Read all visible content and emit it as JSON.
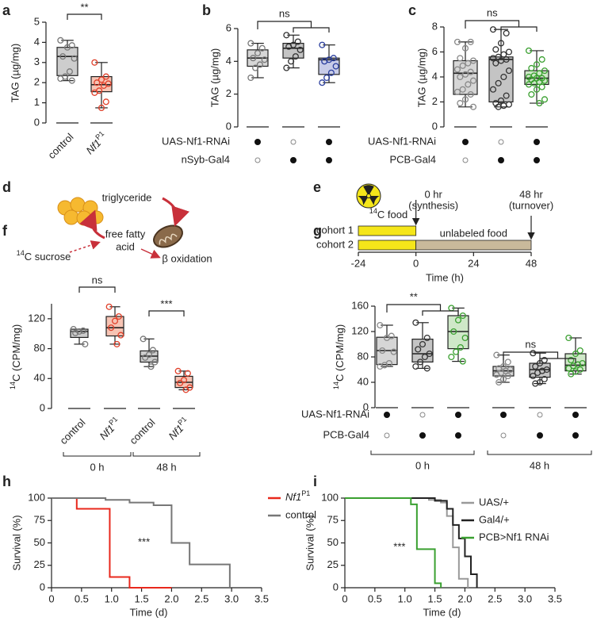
{
  "chart_data": [
    {
      "panel": "a",
      "letter": "a",
      "type": "box",
      "ylabel": "TAG (µg/mg)",
      "ylim": [
        0,
        5
      ],
      "yticks": [
        0,
        1,
        2,
        3,
        4,
        5
      ],
      "categories": [
        "control",
        {
          "text": "Nf1",
          "sup": "P1"
        }
      ],
      "significance": "**",
      "boxes": [
        {
          "low": 2.1,
          "q1": 2.35,
          "median": 3.3,
          "q3": 3.75,
          "high": 4.1,
          "fill": "#cdcdcd",
          "color": "#777777",
          "points": [
            4.1,
            3.85,
            3.75,
            3.3,
            3.2,
            2.55,
            2.3,
            2.2,
            2.1
          ]
        },
        {
          "low": 0.75,
          "q1": 1.55,
          "median": 1.9,
          "q3": 2.3,
          "high": 3.0,
          "fill": "#f7c4b4",
          "color": "#e0402a",
          "points": [
            3.0,
            2.3,
            2.15,
            2.0,
            1.95,
            1.85,
            1.6,
            1.5,
            1.05,
            0.75
          ]
        }
      ]
    },
    {
      "panel": "b",
      "letter": "b",
      "type": "box",
      "ylabel": "TAG (µg/mg)",
      "ylim": [
        0,
        6
      ],
      "yticks": [
        0,
        2,
        4,
        6
      ],
      "significance": "ns",
      "genotypes": [
        {
          "name": "UAS-Nf1-RNAi",
          "present": [
            true,
            false,
            true
          ]
        },
        {
          "name": "nSyb-Gal4",
          "present": [
            false,
            true,
            true
          ]
        }
      ],
      "boxes": [
        {
          "low": 3.0,
          "q1": 3.7,
          "median": 4.2,
          "q3": 4.7,
          "high": 5.1,
          "fill": "#d6d6d6",
          "color": "#777777",
          "points": [
            5.1,
            4.8,
            4.5,
            4.2,
            4.1,
            3.8,
            3.6,
            3.0
          ]
        },
        {
          "low": 3.6,
          "q1": 4.2,
          "median": 4.8,
          "q3": 5.1,
          "high": 5.6,
          "fill": "#c4c4c4",
          "color": "#333333",
          "points": [
            5.6,
            5.2,
            5.0,
            4.9,
            4.7,
            4.3,
            4.0,
            3.6
          ]
        },
        {
          "low": 2.7,
          "q1": 3.2,
          "median": 4.1,
          "q3": 4.2,
          "high": 5.0,
          "fill": "#c8cce8",
          "color": "#2b3f9e",
          "points": [
            5.0,
            4.2,
            4.1,
            4.0,
            3.7,
            3.3,
            3.0,
            2.7
          ]
        }
      ]
    },
    {
      "panel": "c",
      "letter": "c",
      "type": "box",
      "ylabel": "TAG (µg/mg)",
      "ylim": [
        0,
        8
      ],
      "yticks": [
        0,
        2,
        4,
        6,
        8
      ],
      "significance": "ns",
      "genotypes": [
        {
          "name": "UAS-Nf1-RNAi",
          "present": [
            true,
            false,
            true
          ]
        },
        {
          "name": "PCB-Gal4",
          "present": [
            false,
            true,
            true
          ]
        }
      ],
      "boxes": [
        {
          "low": 1.6,
          "q1": 2.6,
          "median": 4.3,
          "q3": 5.3,
          "high": 6.8,
          "fill": "#d6d6d6",
          "color": "#888888",
          "points": [
            6.8,
            6.8,
            6.3,
            5.5,
            5.3,
            5.1,
            4.9,
            4.6,
            4.4,
            4.2,
            4.0,
            3.7,
            3.4,
            3.0,
            2.8,
            2.6,
            2.2,
            1.9,
            1.6
          ]
        },
        {
          "low": 1.6,
          "q1": 2.0,
          "median": 5.4,
          "q3": 5.6,
          "high": 7.8,
          "fill": "#c4c4c4",
          "color": "#333333",
          "points": [
            7.8,
            7.5,
            6.7,
            6.2,
            6.0,
            5.8,
            5.6,
            5.5,
            5.4,
            5.3,
            5.1,
            4.5,
            4.0,
            3.5,
            3.0,
            2.5,
            2.1,
            1.9,
            1.8,
            1.7,
            1.6
          ]
        },
        {
          "low": 1.9,
          "q1": 3.4,
          "median": 3.9,
          "q3": 4.5,
          "high": 6.1,
          "fill": "#cfe8c8",
          "color": "#3aa030",
          "points": [
            6.1,
            5.4,
            5.0,
            4.7,
            4.5,
            4.3,
            4.1,
            4.0,
            3.9,
            3.9,
            3.8,
            3.7,
            3.6,
            3.5,
            3.4,
            3.2,
            3.0,
            2.6,
            2.2,
            1.9
          ]
        }
      ]
    },
    {
      "panel": "d",
      "letter": "d",
      "type": "diagram",
      "nodes": [
        "triglyceride",
        "free fatty",
        "acid",
        "β oxidation"
      ],
      "source": {
        "sup": "14",
        "text": "C sucrose"
      }
    },
    {
      "panel": "e",
      "letter": "e",
      "type": "timeline",
      "xlim": [
        -24,
        48
      ],
      "xticks": [
        -24,
        0,
        24,
        48
      ],
      "xlabel": "Time (h)",
      "food_label": {
        "sup": "14",
        "text": "C food"
      },
      "markers": [
        {
          "at": 0,
          "lines": [
            "0 hr",
            "(synthesis)"
          ]
        },
        {
          "at": 48,
          "lines": [
            "48 hr",
            "(turnover)"
          ]
        }
      ],
      "cohorts": [
        {
          "name": "cohort 1",
          "segments": [
            {
              "start": -24,
              "end": 0,
              "color": "#f5e61a"
            }
          ]
        },
        {
          "name": "cohort 2",
          "segments": [
            {
              "start": -24,
              "end": 0,
              "color": "#f5e61a"
            },
            {
              "start": 0,
              "end": 48,
              "color": "#c9b99b",
              "label": "unlabeled food"
            }
          ]
        }
      ]
    },
    {
      "panel": "f",
      "letter": "f",
      "type": "grouped-box",
      "ylabel": {
        "sup": "14",
        "text": "C (CPM/mg)"
      },
      "ylim": [
        0,
        140
      ],
      "yticks": [
        0,
        40,
        80,
        120
      ],
      "groups": [
        {
          "name": "0 h",
          "significance": "ns",
          "categories": [
            "control",
            {
              "text": "Nf1",
              "sup": "P1"
            }
          ],
          "boxes": [
            {
              "low": 86,
              "q1": 95,
              "median": 103,
              "q3": 106,
              "high": 106,
              "fill": "#cdcdcd",
              "color": "#777777",
              "points": [
                106,
                104,
                103,
                101,
                86
              ]
            },
            {
              "low": 86,
              "q1": 97,
              "median": 108,
              "q3": 123,
              "high": 136,
              "fill": "#f7c4b4",
              "color": "#e0402a",
              "points": [
                136,
                123,
                117,
                108,
                98,
                86
              ]
            }
          ]
        },
        {
          "name": "48 h",
          "significance": "***",
          "categories": [
            "control",
            {
              "text": "Nf1",
              "sup": "P1"
            }
          ],
          "boxes": [
            {
              "low": 56,
              "q1": 62,
              "median": 70,
              "q3": 77,
              "high": 93,
              "fill": "#cdcdcd",
              "color": "#777777",
              "points": [
                93,
                78,
                72,
                68,
                62,
                56
              ]
            },
            {
              "low": 25,
              "q1": 28,
              "median": 35,
              "q3": 43,
              "high": 50,
              "fill": "#f7c4b4",
              "color": "#e0402a",
              "points": [
                50,
                47,
                38,
                34,
                28,
                25
              ]
            }
          ]
        }
      ]
    },
    {
      "panel": "g",
      "letter": "g",
      "type": "grouped-box",
      "ylabel": {
        "sup": "14",
        "text": "C (CPM/mg)"
      },
      "ylim": [
        0,
        160
      ],
      "yticks": [
        0,
        40,
        80,
        120,
        160
      ],
      "genotypes": [
        {
          "name": "UAS-Nf1-RNAi",
          "present": [
            true,
            false,
            true
          ]
        },
        {
          "name": "PCB-Gal4",
          "present": [
            false,
            true,
            true
          ]
        }
      ],
      "groups": [
        {
          "name": "0 h",
          "significance": "**",
          "boxes": [
            {
              "low": 65,
              "q1": 68,
              "median": 90,
              "q3": 111,
              "high": 130,
              "fill": "#d6d6d6",
              "color": "#888888",
              "points": [
                130,
                113,
                110,
                90,
                88,
                70,
                67,
                65
              ]
            },
            {
              "low": 62,
              "q1": 72,
              "median": 85,
              "q3": 108,
              "high": 134,
              "fill": "#c4c4c4",
              "color": "#333333",
              "points": [
                134,
                110,
                100,
                92,
                85,
                80,
                72,
                65,
                62
              ]
            },
            {
              "low": 73,
              "q1": 93,
              "median": 120,
              "q3": 145,
              "high": 157,
              "fill": "#cfe8c8",
              "color": "#3aa030",
              "points": [
                157,
                145,
                138,
                120,
                110,
                95,
                88,
                80,
                73
              ]
            }
          ]
        },
        {
          "name": "48 h",
          "significance": "ns",
          "boxes": [
            {
              "low": 40,
              "q1": 50,
              "median": 58,
              "q3": 65,
              "high": 83,
              "fill": "#d6d6d6",
              "color": "#888888",
              "points": [
                83,
                72,
                65,
                62,
                60,
                58,
                55,
                52,
                50,
                45,
                40
              ]
            },
            {
              "low": 38,
              "q1": 48,
              "median": 60,
              "q3": 70,
              "high": 86,
              "fill": "#c4c4c4",
              "color": "#333333",
              "points": [
                86,
                75,
                70,
                65,
                60,
                58,
                55,
                50,
                45,
                40,
                38
              ]
            },
            {
              "low": 53,
              "q1": 58,
              "median": 67,
              "q3": 85,
              "high": 110,
              "fill": "#cfe8c8",
              "color": "#3aa030",
              "points": [
                110,
                90,
                85,
                75,
                70,
                68,
                66,
                62,
                60,
                57,
                53
              ]
            }
          ]
        }
      ]
    },
    {
      "panel": "h",
      "letter": "h",
      "type": "step",
      "xlabel": "Time (d)",
      "ylabel": "Survival (%)",
      "annotation": "***",
      "xlim": [
        0,
        3.5
      ],
      "xticks": [
        0,
        0.5,
        {
          "value": 1,
          "label": "1.0"
        },
        1.5,
        {
          "value": 2,
          "label": "2.0"
        },
        2.5,
        {
          "value": 3,
          "label": "3.0"
        },
        3.5
      ],
      "ylim": [
        0,
        100
      ],
      "yticks": [
        0,
        25,
        50,
        75,
        100
      ],
      "series": [
        {
          "name": {
            "text": "Nf1",
            "sup": "P1"
          },
          "color": "#e8281c",
          "x": [
            0,
            0.42,
            0.97,
            1.3,
            2.0
          ],
          "y": [
            100,
            88,
            12,
            0,
            0
          ]
        },
        {
          "name": "control",
          "color": "#777777",
          "x": [
            0,
            0.9,
            1.3,
            1.7,
            2.0,
            2.3,
            2.97
          ],
          "y": [
            100,
            98,
            95,
            92,
            50,
            26,
            0
          ]
        }
      ]
    },
    {
      "panel": "i",
      "letter": "i",
      "type": "step",
      "xlabel": "Time (d)",
      "ylabel": "Survival (%)",
      "annotation": "***",
      "xlim": [
        0,
        3.5
      ],
      "xticks": [
        0,
        0.5,
        {
          "value": 1,
          "label": "1.0"
        },
        1.5,
        {
          "value": 2,
          "label": "2.0"
        },
        2.5,
        {
          "value": 3,
          "label": "3.0"
        },
        3.5
      ],
      "ylim": [
        0,
        100
      ],
      "yticks": [
        0,
        25,
        50,
        75,
        100
      ],
      "series": [
        {
          "name": "UAS/+",
          "color": "#999999",
          "x": [
            0,
            1.4,
            1.6,
            1.7,
            1.8,
            1.9,
            2.05
          ],
          "y": [
            100,
            98,
            95,
            80,
            45,
            10,
            0
          ]
        },
        {
          "name": "Gal4/+",
          "color": "#222222",
          "x": [
            0,
            1.5,
            1.7,
            1.8,
            1.9,
            2.0,
            2.1,
            2.2
          ],
          "y": [
            100,
            97,
            88,
            70,
            55,
            35,
            15,
            0
          ]
        },
        {
          "name": "PCB>Nf1 RNAi",
          "color": "#3aa030",
          "x": [
            0,
            1.1,
            1.2,
            1.5,
            1.6
          ],
          "y": [
            100,
            93,
            43,
            5,
            0
          ]
        }
      ]
    }
  ]
}
